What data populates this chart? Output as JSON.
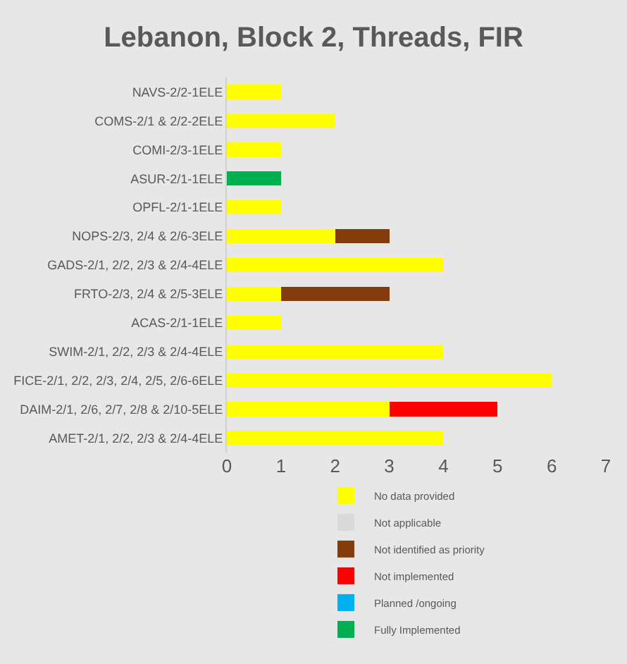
{
  "chart_data": {
    "type": "bar",
    "orientation": "horizontal",
    "stacked": true,
    "title": "Lebanon, Block 2, Threads, FIR",
    "categories": [
      "NAVS-2/2-1ELE",
      "COMS-2/1 & 2/2-2ELE",
      "COMI-2/3-1ELE",
      "ASUR-2/1-1ELE",
      "OPFL-2/1-1ELE",
      "NOPS-2/3, 2/4 & 2/6-3ELE",
      "GADS-2/1, 2/2, 2/3 & 2/4-4ELE",
      "FRTO-2/3, 2/4 & 2/5-3ELE",
      "ACAS-2/1-1ELE",
      "SWIM-2/1, 2/2, 2/3 & 2/4-4ELE",
      "FICE-2/1, 2/2, 2/3, 2/4, 2/5, 2/6-6ELE",
      "DAIM-2/1, 2/6, 2/7, 2/8 & 2/10-5ELE",
      "AMET-2/1, 2/2, 2/3 & 2/4-4ELE"
    ],
    "series": [
      {
        "name": "No data provided",
        "color": "#ffff00",
        "values": [
          1,
          2,
          1,
          0,
          1,
          2,
          4,
          1,
          1,
          4,
          6,
          3,
          4
        ]
      },
      {
        "name": "Not applicable",
        "color": "#d9d9d9",
        "values": [
          0,
          0,
          0,
          0,
          0,
          0,
          0,
          0,
          0,
          0,
          0,
          0,
          0
        ]
      },
      {
        "name": "Not identified as priority",
        "color": "#843c0c",
        "values": [
          0,
          0,
          0,
          0,
          0,
          1,
          0,
          2,
          0,
          0,
          0,
          0,
          0
        ]
      },
      {
        "name": "Not implemented",
        "color": "#ff0000",
        "values": [
          0,
          0,
          0,
          0,
          0,
          0,
          0,
          0,
          0,
          0,
          0,
          2,
          0
        ]
      },
      {
        "name": "Planned /ongoing",
        "color": "#00b0f0",
        "values": [
          0,
          0,
          0,
          0,
          0,
          0,
          0,
          0,
          0,
          0,
          0,
          0,
          0
        ]
      },
      {
        "name": "Fully Implemented",
        "color": "#00b050",
        "values": [
          0,
          0,
          0,
          1,
          0,
          0,
          0,
          0,
          0,
          0,
          0,
          0,
          0
        ]
      }
    ],
    "xlim": [
      0,
      7
    ],
    "xticks": [
      0,
      1,
      2,
      3,
      4,
      5,
      6,
      7
    ],
    "grid": false,
    "legend": "bottom"
  }
}
